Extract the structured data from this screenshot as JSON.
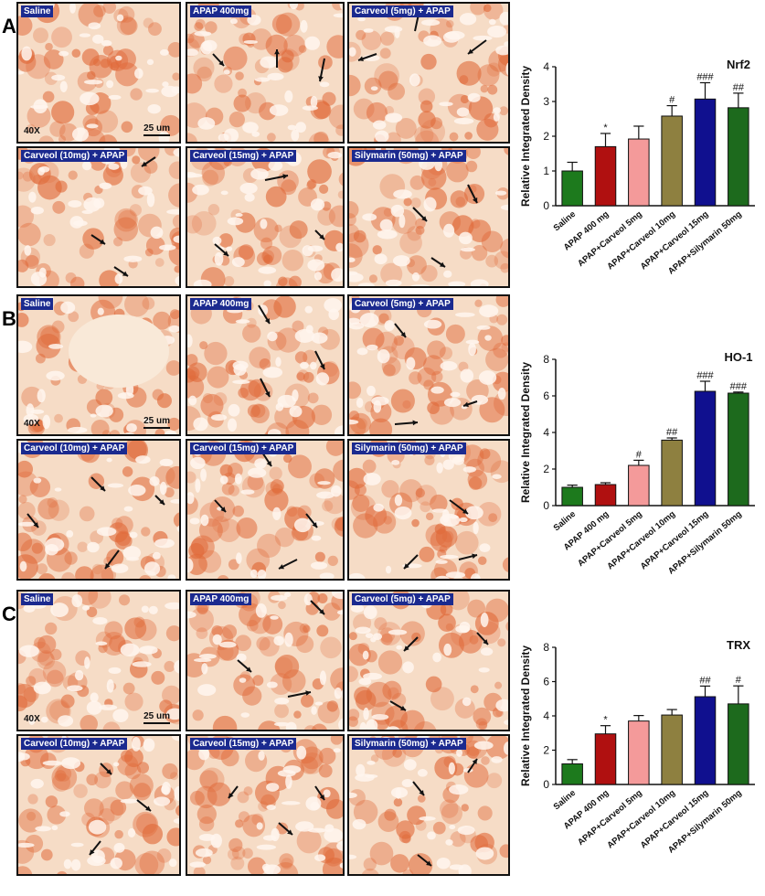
{
  "panels": [
    {
      "letter": "A",
      "tiles": [
        "Saline",
        "APAP 400mg",
        "Carveol (5mg) + APAP",
        "Carveol (10mg) + APAP",
        "Carveol (15mg) + APAP",
        "Silymarin (50mg)  + APAP"
      ],
      "magnification": "40X",
      "scale_bar": "25 um"
    },
    {
      "letter": "B",
      "tiles": [
        "Saline",
        "APAP 400mg",
        "Carveol (5mg) + APAP",
        "Carveol (10mg) + APAP",
        "Carveol (15mg) + APAP",
        "Silymarin (50mg)  + APAP"
      ],
      "magnification": "40X",
      "scale_bar": "25 um"
    },
    {
      "letter": "C",
      "tiles": [
        "Saline",
        "APAP 400mg",
        "Carveol (5mg) + APAP",
        "Carveol (10mg) + APAP",
        "Carveol (15mg) + APAP",
        "Silymarin (50mg)  + APAP"
      ],
      "magnification": "40X",
      "scale_bar": "25 um"
    }
  ],
  "colors": {
    "label_bg": "#1b2a8f",
    "stain_light": "#f6dcc6",
    "stain_dark": "#e06a3a",
    "bar_colors": [
      "#1d7a1d",
      "#b01010",
      "#f49a9a",
      "#8e8040",
      "#10108f",
      "#1d6a1d"
    ]
  },
  "chart_data": [
    {
      "type": "bar",
      "title": "Nrf2",
      "ylabel": "Relative Integrated Density",
      "categories": [
        "Saline",
        "APAP 400 mg",
        "APAP+Carveol 5mg",
        "APAP+Carveol 10mg",
        "APAP+Carveol 15mg",
        "APAP+Silymarin 50mg"
      ],
      "values": [
        1.0,
        1.7,
        1.92,
        2.58,
        3.07,
        2.82
      ],
      "errors": [
        0.25,
        0.38,
        0.37,
        0.3,
        0.47,
        0.42
      ],
      "annotations": [
        "",
        "*",
        "",
        "#",
        "###",
        "##"
      ],
      "ylim": [
        0,
        4
      ],
      "yticks": [
        0,
        1,
        2,
        3,
        4
      ]
    },
    {
      "type": "bar",
      "title": "HO-1",
      "ylabel": "Relative Integrated Density",
      "categories": [
        "Saline",
        "APAP 400 mg",
        "APAP+Carveol 5mg",
        "APAP+Carveol 10mg",
        "APAP+Carveol 15mg",
        "APAP+Silymarin 50mg"
      ],
      "values": [
        1.0,
        1.15,
        2.2,
        3.58,
        6.25,
        6.15
      ],
      "errors": [
        0.12,
        0.1,
        0.28,
        0.12,
        0.55,
        0.06
      ],
      "annotations": [
        "",
        "",
        "#",
        "##",
        "###",
        "###"
      ],
      "ylim": [
        0,
        8
      ],
      "yticks": [
        0,
        2,
        4,
        6,
        8
      ]
    },
    {
      "type": "bar",
      "title": "TRX",
      "ylabel": "Relative Integrated Density",
      "categories": [
        "Saline",
        "APAP 400 mg",
        "APAP+Carveol 5mg",
        "APAP+Carveol 10mg",
        "APAP+Carveol 15mg",
        "APAP+Silymarin 50mg"
      ],
      "values": [
        1.2,
        2.95,
        3.7,
        4.05,
        5.12,
        4.7
      ],
      "errors": [
        0.25,
        0.48,
        0.32,
        0.32,
        0.62,
        1.05
      ],
      "annotations": [
        "",
        "*",
        "",
        "",
        "##",
        "#"
      ],
      "ylim": [
        0,
        8
      ],
      "yticks": [
        0,
        2,
        4,
        6,
        8
      ]
    }
  ]
}
